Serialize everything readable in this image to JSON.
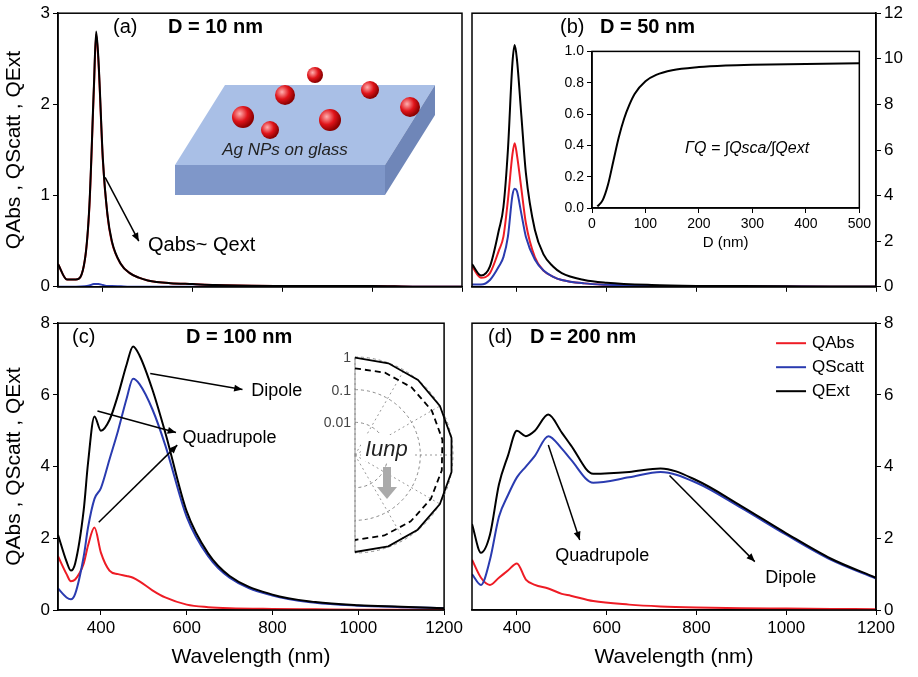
{
  "chart_data": [
    {
      "type": "line",
      "panel_label": "(a)",
      "title": "D = 10 nm",
      "y_label": "QAbs , QScatt , QExt",
      "x": [
        300,
        320,
        340,
        360,
        370,
        380,
        385,
        390,
        400,
        410,
        420,
        440,
        460,
        480,
        500,
        550,
        600,
        650,
        700,
        800,
        900,
        1000,
        1100,
        1200
      ],
      "series": [
        {
          "color": "#ee1c25",
          "values": [
            0.25,
            0.08,
            0.08,
            0.3,
            0.88,
            2.17,
            2.77,
            2.47,
            1.38,
            0.79,
            0.49,
            0.25,
            0.15,
            0.1,
            0.07,
            0.04,
            0.03,
            0.02,
            0.015,
            0.01,
            0.01,
            0.01,
            0.0,
            0.0
          ]
        },
        {
          "color": "#2a3bb0",
          "values": [
            0,
            0,
            0,
            0.005,
            0.015,
            0.03,
            0.03,
            0.03,
            0.02,
            0.01,
            0.01,
            0.005,
            0,
            0,
            0,
            0,
            0,
            0,
            0,
            0,
            0,
            0,
            0,
            0
          ]
        },
        {
          "color": "#000000",
          "values": [
            0.25,
            0.08,
            0.08,
            0.3,
            0.9,
            2.2,
            2.8,
            2.5,
            1.4,
            0.8,
            0.5,
            0.25,
            0.15,
            0.1,
            0.07,
            0.04,
            0.03,
            0.02,
            0.015,
            0.01,
            0.01,
            0.01,
            0.0,
            0.0
          ]
        }
      ],
      "xlim": [
        300,
        1200
      ],
      "xticks": [
        400,
        600,
        800,
        1000,
        1200
      ],
      "ylim": [
        0,
        3
      ],
      "yticks": [
        0,
        1,
        2,
        3
      ],
      "grid": false,
      "tick_labels": "y",
      "annotations": [
        "Qabs~ Qext"
      ],
      "inset": {
        "type": "diagram",
        "text": "Ag NPs on glass"
      }
    },
    {
      "type": "line",
      "panel_label": "(b)",
      "title": "D = 50 nm",
      "x": [
        300,
        320,
        340,
        360,
        370,
        380,
        390,
        395,
        400,
        410,
        420,
        440,
        460,
        480,
        500,
        550,
        600,
        700,
        800,
        900,
        1000,
        1100,
        1200
      ],
      "series": [
        {
          "color": "#ee1c25",
          "values": [
            0.9,
            0.4,
            0.6,
            1.6,
            2.2,
            3.8,
            5.8,
            6.3,
            5.8,
            4.3,
            2.8,
            1.3,
            0.7,
            0.45,
            0.3,
            0.15,
            0.09,
            0.04,
            0.02,
            0.015,
            0.01,
            0.005,
            0.005
          ]
        },
        {
          "color": "#2a3bb0",
          "values": [
            0.1,
            0.1,
            0.3,
            0.9,
            1.3,
            2.2,
            4.0,
            4.3,
            4.2,
            3.2,
            2.2,
            1.2,
            0.7,
            0.45,
            0.3,
            0.15,
            0.09,
            0.04,
            0.02,
            0.015,
            0.01,
            0.005,
            0.005
          ]
        },
        {
          "color": "#000000",
          "values": [
            1.0,
            0.5,
            0.9,
            2.5,
            3.5,
            6.0,
            9.8,
            10.6,
            10.0,
            7.5,
            5.0,
            2.5,
            1.4,
            0.9,
            0.6,
            0.3,
            0.18,
            0.08,
            0.04,
            0.03,
            0.02,
            0.01,
            0.01
          ]
        }
      ],
      "xlim": [
        300,
        1200
      ],
      "xticks": [
        400,
        600,
        800,
        1000,
        1200
      ],
      "ylim": [
        0,
        12
      ],
      "yticks": [
        0,
        2,
        4,
        6,
        8,
        10,
        12
      ],
      "grid": false,
      "tick_labels": "y",
      "inset": {
        "type": "line",
        "x_label": "D (nm)",
        "x": [
          10,
          20,
          30,
          40,
          50,
          60,
          70,
          80,
          100,
          120,
          150,
          200,
          250,
          300,
          400,
          500
        ],
        "values": [
          0.01,
          0.05,
          0.15,
          0.3,
          0.45,
          0.57,
          0.66,
          0.73,
          0.81,
          0.85,
          0.88,
          0.9,
          0.91,
          0.915,
          0.92,
          0.925
        ],
        "color": "#000000",
        "xlim": [
          0,
          500
        ],
        "xticks": [
          0,
          100,
          200,
          300,
          400,
          500
        ],
        "ylim": [
          0,
          1
        ],
        "yticks": [
          {
            "value": 0,
            "label": "0.0"
          },
          0.2,
          0.4,
          0.6,
          0.8,
          {
            "value": 1,
            "label": "1.0"
          }
        ],
        "grid": false,
        "annotations": [
          "ΓQ = ∫Qsca/∫Qext"
        ]
      }
    },
    {
      "type": "line",
      "panel_label": "(c)",
      "title": "D = 100 nm",
      "y_label": "QAbs , QScatt , QExt",
      "x_label": "Wavelength (nm)",
      "x": [
        300,
        320,
        330,
        340,
        360,
        370,
        385,
        400,
        420,
        440,
        460,
        475,
        490,
        520,
        550,
        600,
        650,
        700,
        800,
        900,
        1000,
        1100,
        1200
      ],
      "series": [
        {
          "color": "#ee1c25",
          "values": [
            1.5,
            1.0,
            0.8,
            0.85,
            1.3,
            1.8,
            2.3,
            1.6,
            1.1,
            1.0,
            0.95,
            0.9,
            0.8,
            0.55,
            0.35,
            0.15,
            0.08,
            0.05,
            0.03,
            0.02,
            0.01,
            0.01,
            0.0
          ]
        },
        {
          "color": "#2a3bb0",
          "values": [
            0.6,
            0.35,
            0.3,
            0.45,
            1.5,
            2.3,
            3.1,
            3.4,
            4.2,
            5.0,
            5.9,
            6.45,
            6.3,
            5.6,
            4.6,
            2.6,
            1.5,
            0.9,
            0.4,
            0.2,
            0.12,
            0.08,
            0.05
          ]
        },
        {
          "color": "#000000",
          "values": [
            2.1,
            1.35,
            1.1,
            1.3,
            2.8,
            4.1,
            5.4,
            5.0,
            5.3,
            6.0,
            6.85,
            7.35,
            7.1,
            6.15,
            4.95,
            2.75,
            1.58,
            0.95,
            0.43,
            0.22,
            0.13,
            0.09,
            0.05
          ]
        }
      ],
      "xlim": [
        300,
        1200
      ],
      "xticks": [
        400,
        600,
        800,
        1000,
        1200
      ],
      "ylim": [
        0,
        8
      ],
      "yticks": [
        0,
        2,
        4,
        6,
        8
      ],
      "grid": false,
      "annotations": [
        "Dipole",
        "Quadrupole"
      ],
      "inset": {
        "type": "polar",
        "label": "Iunp",
        "log": true,
        "rlim": [
          0.001,
          1
        ],
        "rticks": [
          1,
          0.1,
          0.01
        ],
        "theta": [
          0,
          20,
          40,
          60,
          80,
          100,
          120,
          140,
          160,
          180
        ],
        "series": [
          {
            "line_style": "solid",
            "color": "#000000",
            "values": [
              0.95,
              0.97,
              1,
              1,
              1,
              1,
              1,
              0.97,
              0.95,
              0.93
            ]
          },
          {
            "line_style": "dashed",
            "color": "#000000",
            "values": [
              0.45,
              0.48,
              0.5,
              0.52,
              0.52,
              0.5,
              0.48,
              0.45,
              0.42,
              0.4
            ]
          }
        ]
      }
    },
    {
      "type": "line",
      "panel_label": "(d)",
      "title": "D = 200 nm",
      "x_label": "Wavelength (nm)",
      "x": [
        300,
        320,
        340,
        360,
        380,
        400,
        420,
        440,
        470,
        500,
        520,
        570,
        650,
        720,
        800,
        900,
        1000,
        1100,
        1200
      ],
      "series": [
        {
          "name": "QAbs",
          "color": "#ee1c25",
          "values": [
            1.4,
            0.9,
            0.7,
            0.9,
            1.1,
            1.3,
            0.85,
            0.7,
            0.6,
            0.45,
            0.4,
            0.25,
            0.15,
            0.1,
            0.07,
            0.05,
            0.04,
            0.03,
            0.02
          ]
        },
        {
          "name": "QScatt",
          "color": "#2a3bb0",
          "values": [
            1.0,
            0.7,
            1.4,
            2.6,
            3.2,
            3.7,
            4.0,
            4.3,
            4.85,
            4.5,
            4.2,
            3.55,
            3.7,
            3.85,
            3.55,
            2.85,
            2.1,
            1.4,
            0.88
          ]
        },
        {
          "name": "QExt",
          "color": "#000000",
          "values": [
            2.4,
            1.6,
            2.1,
            3.5,
            4.3,
            5.0,
            4.85,
            5.0,
            5.45,
            4.95,
            4.6,
            3.8,
            3.85,
            3.95,
            3.62,
            2.9,
            2.14,
            1.43,
            0.9
          ]
        }
      ],
      "xlim": [
        300,
        1200
      ],
      "xticks": [
        400,
        600,
        800,
        1000,
        1200
      ],
      "ylim": [
        0,
        8
      ],
      "yticks": [
        0,
        2,
        4,
        6,
        8
      ],
      "grid": false,
      "legend": "upper right",
      "annotations": [
        "Dipole",
        "Quadrupole"
      ]
    }
  ]
}
